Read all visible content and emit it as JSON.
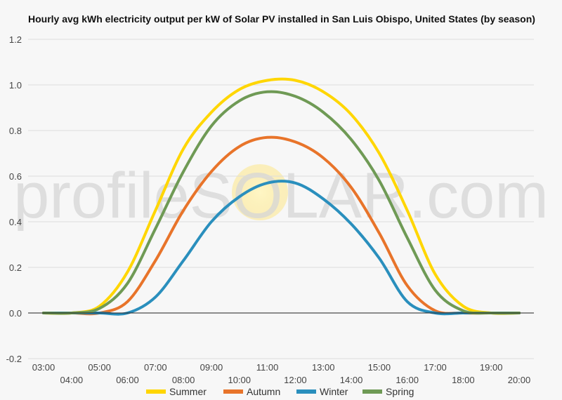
{
  "watermark": "profileSOLAR.com",
  "chart_data": {
    "type": "line",
    "title": "Hourly avg kWh electricity output per kW of Solar PV installed in San Luis Obispo, United States (by season)",
    "xlabel": "",
    "ylabel": "",
    "ylim": [
      -0.2,
      1.2
    ],
    "yticks": [
      "-0.2",
      "0.0",
      "0.2",
      "0.4",
      "0.6",
      "0.8",
      "1.0",
      "1.2"
    ],
    "grid": true,
    "legend_position": "bottom",
    "categories": [
      "03:00",
      "04:00",
      "05:00",
      "06:00",
      "07:00",
      "08:00",
      "09:00",
      "10:00",
      "11:00",
      "12:00",
      "13:00",
      "14:00",
      "15:00",
      "16:00",
      "17:00",
      "18:00",
      "19:00",
      "20:00"
    ],
    "series": [
      {
        "name": "Summer",
        "color": "#ffd600",
        "values": [
          0.0,
          0.0,
          0.03,
          0.18,
          0.45,
          0.72,
          0.88,
          0.98,
          1.02,
          1.02,
          0.97,
          0.87,
          0.7,
          0.45,
          0.17,
          0.03,
          0.0,
          0.0
        ]
      },
      {
        "name": "Autumn",
        "color": "#e8742a",
        "values": [
          0.0,
          0.0,
          0.0,
          0.05,
          0.23,
          0.45,
          0.62,
          0.73,
          0.77,
          0.75,
          0.68,
          0.55,
          0.35,
          0.12,
          0.01,
          0.0,
          0.0,
          0.0
        ]
      },
      {
        "name": "Winter",
        "color": "#2a8fbd",
        "values": [
          0.0,
          0.0,
          0.0,
          0.0,
          0.07,
          0.23,
          0.4,
          0.51,
          0.57,
          0.57,
          0.5,
          0.39,
          0.24,
          0.05,
          0.0,
          0.0,
          0.0,
          0.0
        ]
      },
      {
        "name": "Spring",
        "color": "#6f9a55",
        "values": [
          0.0,
          0.0,
          0.02,
          0.13,
          0.37,
          0.62,
          0.82,
          0.93,
          0.97,
          0.95,
          0.88,
          0.76,
          0.58,
          0.33,
          0.1,
          0.01,
          0.0,
          0.0
        ]
      }
    ]
  }
}
